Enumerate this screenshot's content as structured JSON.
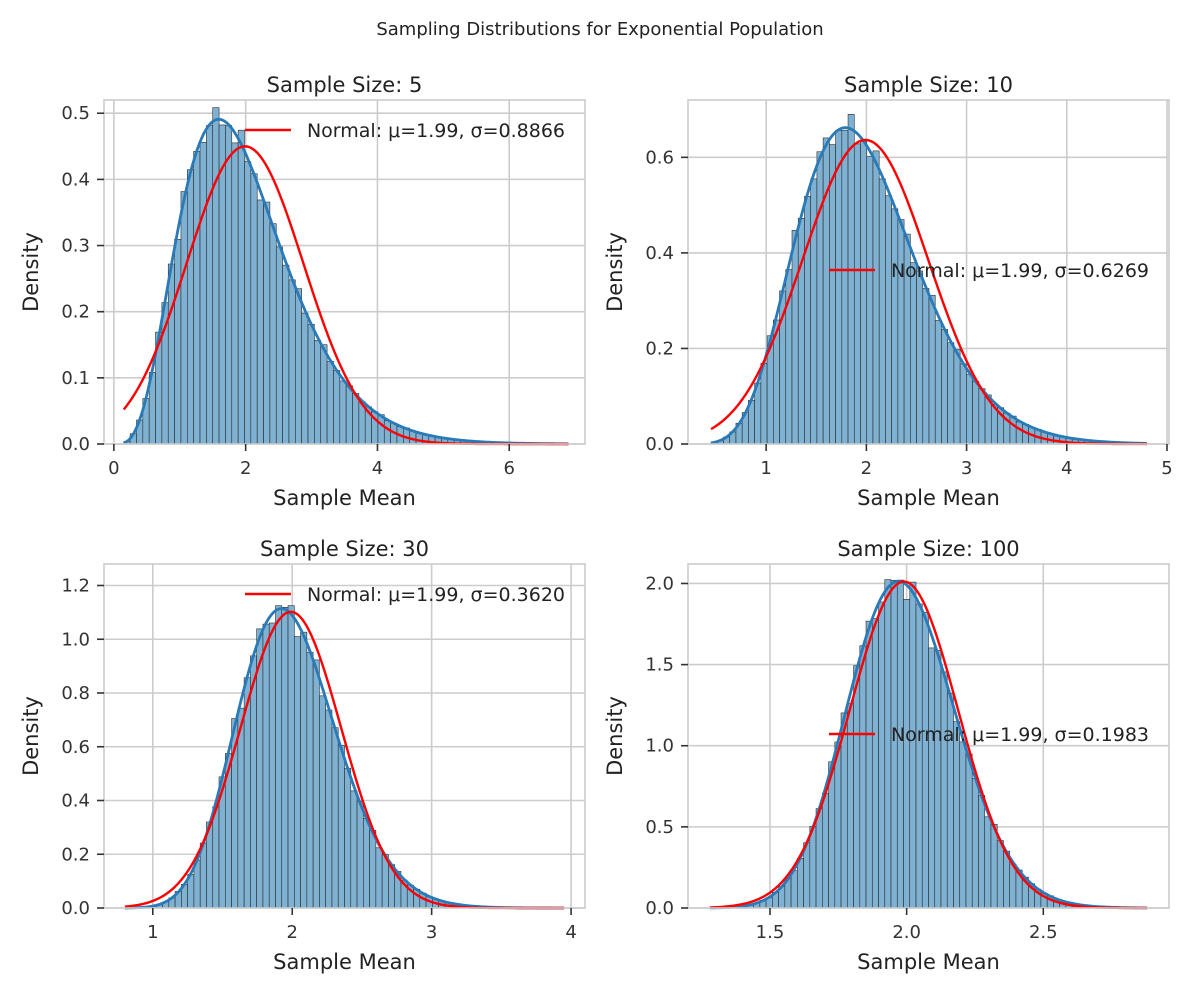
{
  "figure": {
    "title": "Sampling Distributions for Exponential Population"
  },
  "colors": {
    "histogram": "#7fb1d3",
    "kde": "#2a7ab8",
    "normal": "#ff0000",
    "grid": "#cccccc"
  },
  "chart_data": [
    {
      "type": "bar",
      "title": "Sample Size: 5",
      "sample_size": 5,
      "xlabel": "Sample Mean",
      "ylabel": "Density",
      "xlim": [
        -0.15,
        7.15
      ],
      "ylim": [
        0,
        0.52
      ],
      "xticks": [
        0,
        2,
        4,
        6
      ],
      "yticks": [
        0.0,
        0.1,
        0.2,
        0.3,
        0.4,
        0.5
      ],
      "ytick_decimals": 1,
      "grid": true,
      "data_range": [
        0.15,
        6.9
      ],
      "bins": 70,
      "dist": {
        "kind": "gamma",
        "shape": 5,
        "scale": 0.398
      },
      "normal": {
        "mu": 1.99,
        "sigma": 0.8866
      },
      "legend": {
        "label": "Normal: μ=1.99, σ=0.8866",
        "position": "upper right"
      },
      "series": [
        {
          "name": "Normal: μ=1.99, σ=0.8866",
          "kind": "line"
        }
      ]
    },
    {
      "type": "bar",
      "title": "Sample Size: 10",
      "sample_size": 10,
      "xlabel": "Sample Mean",
      "ylabel": "Density",
      "xlim": [
        0.22,
        5.02
      ],
      "ylim": [
        0,
        0.72
      ],
      "xticks": [
        1,
        2,
        3,
        4,
        5
      ],
      "yticks": [
        0.0,
        0.2,
        0.4,
        0.6
      ],
      "ytick_decimals": 1,
      "grid": true,
      "data_range": [
        0.45,
        4.8
      ],
      "bins": 70,
      "dist": {
        "kind": "gamma",
        "shape": 10,
        "scale": 0.199
      },
      "normal": {
        "mu": 1.99,
        "sigma": 0.6269
      },
      "legend": {
        "label": "Normal: μ=1.99, σ=0.6269",
        "position": "center right"
      },
      "series": [
        {
          "name": "Normal: μ=1.99, σ=0.6269",
          "kind": "line"
        }
      ]
    },
    {
      "type": "bar",
      "title": "Sample Size: 30",
      "sample_size": 30,
      "xlabel": "Sample Mean",
      "ylabel": "Density",
      "xlim": [
        0.65,
        4.1
      ],
      "ylim": [
        0,
        1.28
      ],
      "xticks": [
        1,
        2,
        3,
        4
      ],
      "yticks": [
        0.0,
        0.2,
        0.4,
        0.6,
        0.8,
        1.0,
        1.2
      ],
      "ytick_decimals": 1,
      "grid": true,
      "data_range": [
        0.8,
        3.95
      ],
      "bins": 70,
      "dist": {
        "kind": "gamma",
        "shape": 30,
        "scale": 0.0663
      },
      "normal": {
        "mu": 1.99,
        "sigma": 0.362
      },
      "legend": {
        "label": "Normal: μ=1.99, σ=0.3620",
        "position": "upper right"
      },
      "series": [
        {
          "name": "Normal: μ=1.99, σ=0.3620",
          "kind": "line"
        }
      ]
    },
    {
      "type": "bar",
      "title": "Sample Size: 100",
      "sample_size": 100,
      "xlabel": "Sample Mean",
      "ylabel": "Density",
      "xlim": [
        1.2,
        2.96
      ],
      "ylim": [
        0,
        2.12
      ],
      "xticks": [
        1.5,
        2.0,
        2.5
      ],
      "yticks": [
        0.0,
        0.5,
        1.0,
        1.5,
        2.0
      ],
      "ytick_decimals": 1,
      "grid": true,
      "data_range": [
        1.28,
        2.88
      ],
      "bins": 70,
      "dist": {
        "kind": "gamma",
        "shape": 100,
        "scale": 0.0199
      },
      "normal": {
        "mu": 1.99,
        "sigma": 0.1983
      },
      "legend": {
        "label": "Normal: μ=1.99, σ=0.1983",
        "position": "center right"
      },
      "series": [
        {
          "name": "Normal: μ=1.99, σ=0.1983",
          "kind": "line"
        }
      ]
    }
  ]
}
